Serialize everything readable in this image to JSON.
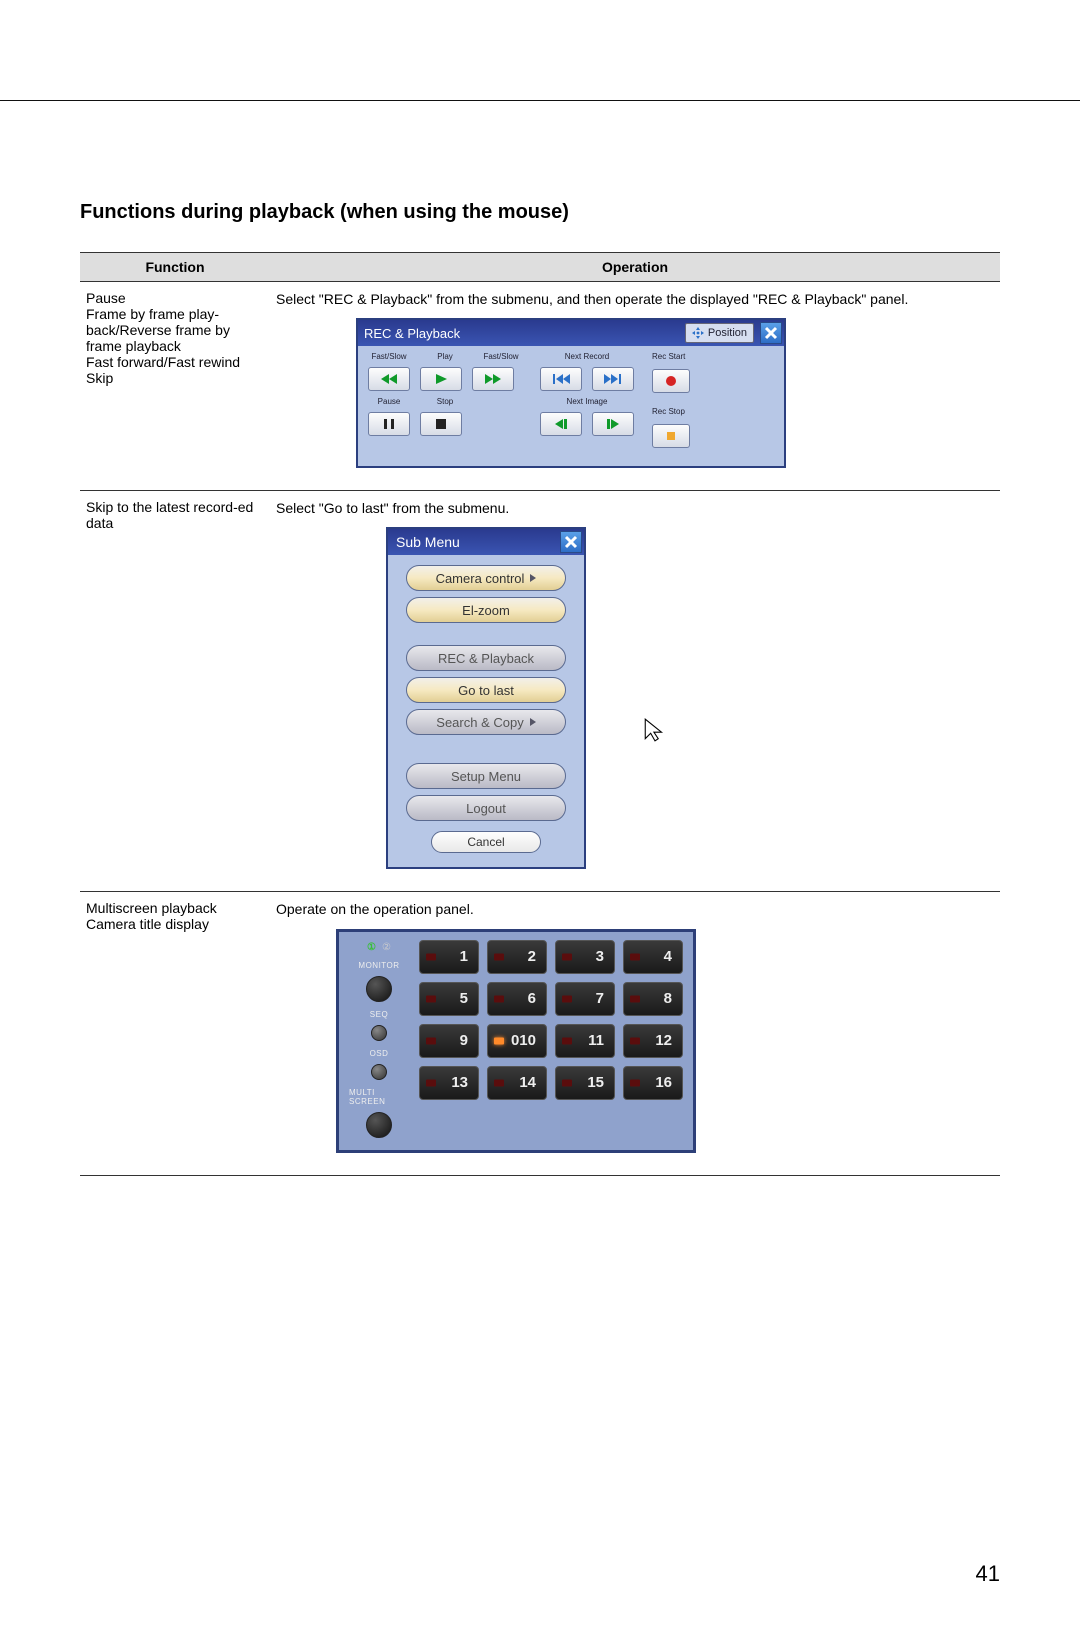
{
  "page_title": "Functions during playback (when using the mouse)",
  "page_number": "41",
  "table": {
    "headers": {
      "function": "Function",
      "operation": "Operation"
    },
    "rows": [
      {
        "function": "Pause\nFrame by frame play-back/Reverse frame by frame playback\nFast forward/Fast rewind\nSkip",
        "operation_text": "Select \"REC & Playback\" from the submenu, and then operate the displayed \"REC & Playback\" panel."
      },
      {
        "function": "Skip to the latest record-ed data",
        "operation_text": "Select \"Go to last\" from the submenu."
      },
      {
        "function": "Multiscreen playback\nCamera title display",
        "operation_text": "Operate on the operation panel."
      }
    ]
  },
  "rec_panel": {
    "title": "REC & Playback",
    "position_label": "Position",
    "labels": {
      "fast_slow_l": "Fast/Slow",
      "play": "Play",
      "fast_slow_r": "Fast/Slow",
      "pause": "Pause",
      "stop": "Stop",
      "next_record": "Next Record",
      "next_image": "Next Image",
      "rec_start": "Rec Start",
      "rec_stop": "Rec Stop"
    },
    "colors": {
      "border": "#2b3f7f",
      "body": "#b7c7e6",
      "btn_top": "#fdfdfd",
      "btn_bot": "#d7dce6",
      "play_green": "#0f9a2a"
    }
  },
  "submenu": {
    "title": "Sub Menu",
    "items": [
      {
        "label": "Camera control",
        "has_arrow": true,
        "style": "gold"
      },
      {
        "label": "El-zoom",
        "has_arrow": false,
        "style": "gold"
      },
      {
        "label": "REC & Playback",
        "has_arrow": false,
        "style": "grey"
      },
      {
        "label": "Go to last",
        "has_arrow": false,
        "style": "gold"
      },
      {
        "label": "Search & Copy",
        "has_arrow": true,
        "style": "grey"
      },
      {
        "label": "Setup Menu",
        "has_arrow": false,
        "style": "grey"
      },
      {
        "label": "Logout",
        "has_arrow": false,
        "style": "grey"
      }
    ],
    "cancel": "Cancel"
  },
  "keypad": {
    "left_labels": {
      "monitor": "MONITOR",
      "seq": "SEQ",
      "osd": "OSD",
      "multiscreen": "MULTI SCREEN"
    },
    "keys": [
      [
        {
          "n": "1"
        },
        {
          "n": "2"
        },
        {
          "n": "3"
        },
        {
          "n": "4"
        }
      ],
      [
        {
          "n": "5"
        },
        {
          "n": "6"
        },
        {
          "n": "7"
        },
        {
          "n": "8"
        }
      ],
      [
        {
          "n": "9"
        },
        {
          "n": "010",
          "active": true
        },
        {
          "n": "11"
        },
        {
          "n": "12"
        }
      ],
      [
        {
          "n": "13",
          "col": 1
        },
        {
          "n": "14"
        },
        {
          "n": "15"
        },
        {
          "n": "16"
        }
      ]
    ]
  }
}
